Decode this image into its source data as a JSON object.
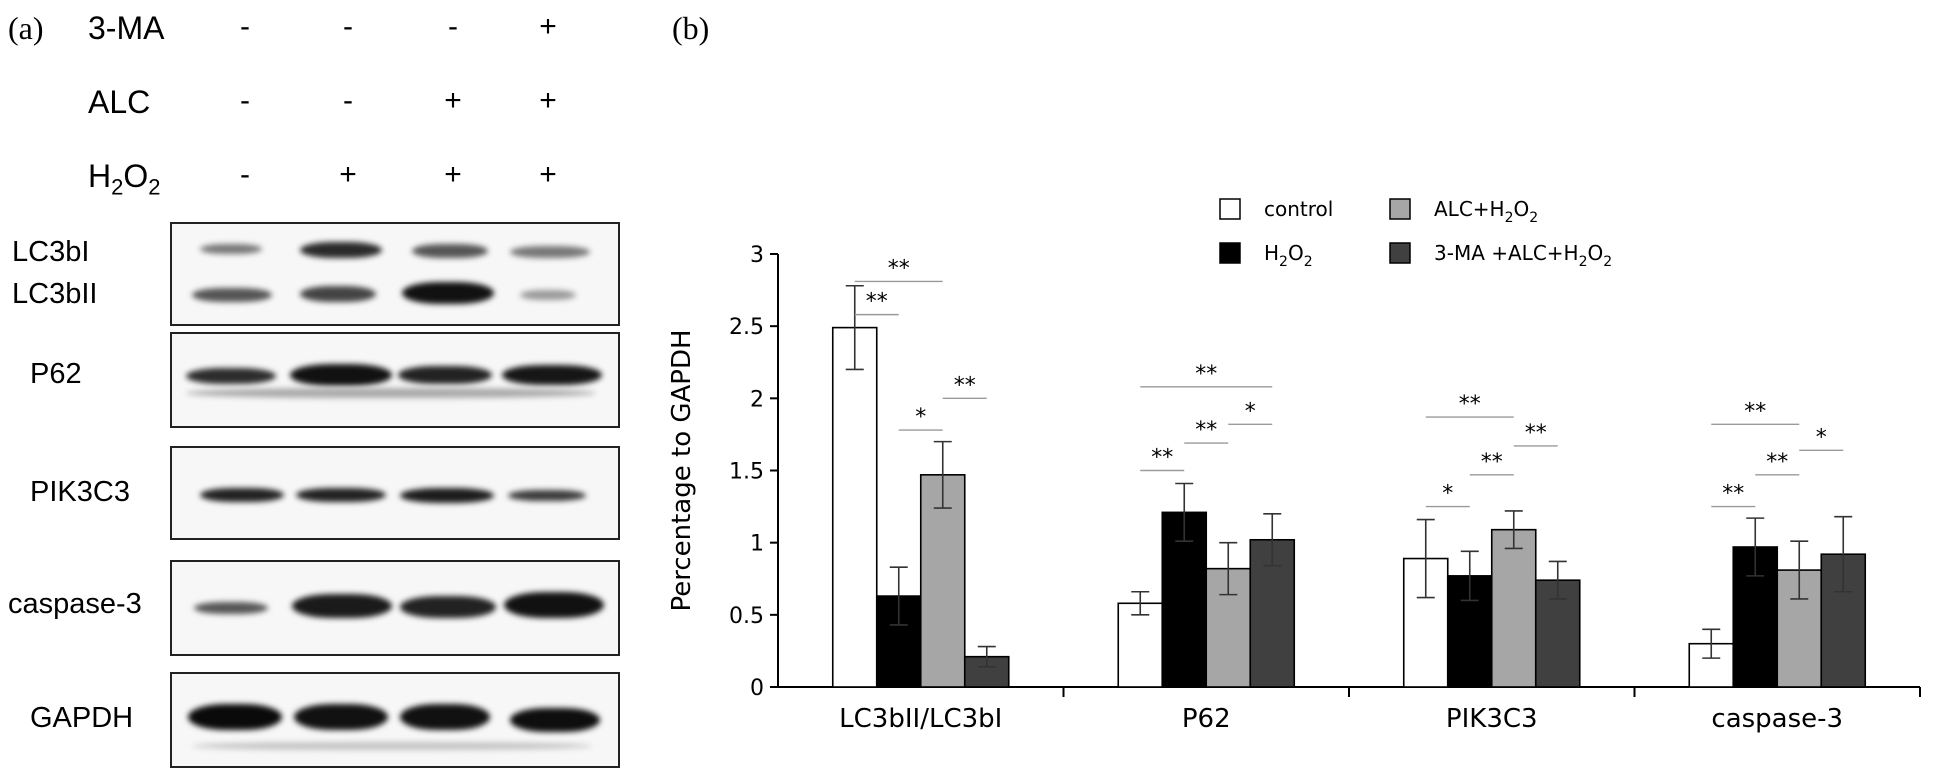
{
  "panel_a": {
    "label": "(a)",
    "conditions": [
      {
        "name": "3-MA",
        "signs": [
          "-",
          "-",
          "-",
          "+"
        ]
      },
      {
        "name": "ALC",
        "signs": [
          "-",
          "-",
          "+",
          "+"
        ]
      },
      {
        "name_main": "H",
        "name_sub": "2",
        "name_main2": "O",
        "name_sub2": "2",
        "signs": [
          "-",
          "+",
          "+",
          "+"
        ]
      }
    ],
    "blots": [
      {
        "label_top": "LC3bI",
        "label_bottom": "LC3bII"
      },
      {
        "label": "P62"
      },
      {
        "label": "PIK3C3"
      },
      {
        "label": "caspase-3"
      },
      {
        "label": "GAPDH"
      }
    ]
  },
  "panel_b": {
    "label": "(b)"
  },
  "chart_data": {
    "type": "bar",
    "ylabel": "Percentage to GAPDH",
    "ylim": [
      0,
      3
    ],
    "yticks": [
      "0",
      "0.5",
      "1",
      "1.5",
      "2",
      "2.5",
      "3"
    ],
    "categories": [
      "LC3bII/LC3bI",
      "P62",
      "PIK3C3",
      "caspase-3"
    ],
    "series": [
      {
        "name": "control",
        "color": "#ffffff",
        "values": [
          2.49,
          0.58,
          0.89,
          0.3
        ],
        "errors": [
          0.29,
          0.08,
          0.27,
          0.1
        ]
      },
      {
        "name": "H2O2",
        "color": "#000000",
        "values": [
          0.63,
          1.21,
          0.77,
          0.97
        ],
        "errors": [
          0.2,
          0.2,
          0.17,
          0.2
        ]
      },
      {
        "name": "ALC+H2O2",
        "color": "#a6a6a6",
        "values": [
          1.47,
          0.82,
          1.09,
          0.81
        ],
        "errors": [
          0.23,
          0.18,
          0.13,
          0.2
        ]
      },
      {
        "name": "3-MA +ALC+H2O2",
        "color": "#404040",
        "values": [
          0.21,
          1.02,
          0.74,
          0.92
        ],
        "errors": [
          0.07,
          0.18,
          0.13,
          0.26
        ]
      }
    ],
    "legend": [
      {
        "main": "control",
        "sub": "",
        "tail": "",
        "sub2": ""
      },
      {
        "main": "ALC+H",
        "sub": "2",
        "tail": "O",
        "sub2": "2"
      },
      {
        "main": "H",
        "sub": "2",
        "tail": "O",
        "sub2": "2"
      },
      {
        "main": "3-MA +ALC+H",
        "sub": "2",
        "tail": "O",
        "sub2": "2"
      }
    ],
    "significance": [
      {
        "category": 0,
        "from": 0,
        "to": 2,
        "y": 2.81,
        "label": "**"
      },
      {
        "category": 0,
        "from": 0,
        "to": 1,
        "y": 2.58,
        "label": "**"
      },
      {
        "category": 0,
        "from": 1,
        "to": 2,
        "y": 1.78,
        "label": "*"
      },
      {
        "category": 0,
        "from": 2,
        "to": 3,
        "y": 2.0,
        "label": "**"
      },
      {
        "category": 1,
        "from": 0,
        "to": 3,
        "y": 2.08,
        "label": "**"
      },
      {
        "category": 1,
        "from": 0,
        "to": 1,
        "y": 1.5,
        "label": "**"
      },
      {
        "category": 1,
        "from": 1,
        "to": 2,
        "y": 1.69,
        "label": "**"
      },
      {
        "category": 1,
        "from": 2,
        "to": 3,
        "y": 1.82,
        "label": "*"
      },
      {
        "category": 2,
        "from": 0,
        "to": 2,
        "y": 1.87,
        "label": "**"
      },
      {
        "category": 2,
        "from": 0,
        "to": 1,
        "y": 1.25,
        "label": "*"
      },
      {
        "category": 2,
        "from": 1,
        "to": 2,
        "y": 1.47,
        "label": "**"
      },
      {
        "category": 2,
        "from": 2,
        "to": 3,
        "y": 1.67,
        "label": "**"
      },
      {
        "category": 3,
        "from": 0,
        "to": 2,
        "y": 1.82,
        "label": "**"
      },
      {
        "category": 3,
        "from": 0,
        "to": 1,
        "y": 1.25,
        "label": "**"
      },
      {
        "category": 3,
        "from": 1,
        "to": 2,
        "y": 1.47,
        "label": "**"
      },
      {
        "category": 3,
        "from": 2,
        "to": 3,
        "y": 1.64,
        "label": "*"
      }
    ]
  }
}
